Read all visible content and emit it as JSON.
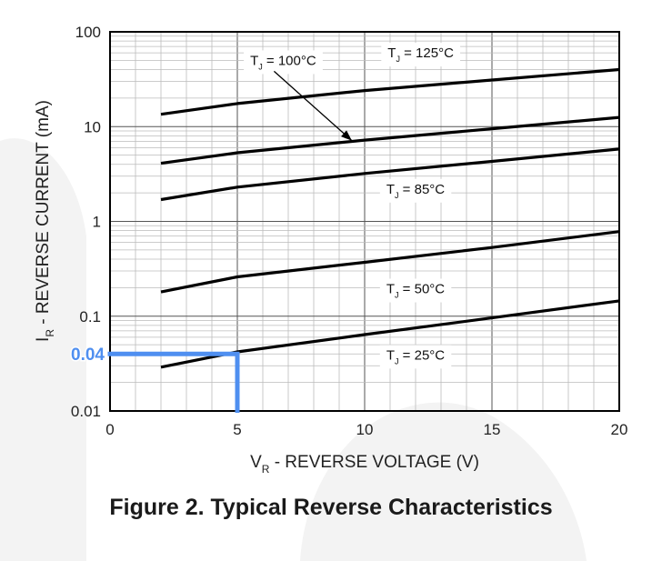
{
  "caption": "Figure 2. Typical Reverse Characteristics",
  "chart_data": {
    "type": "line",
    "title": "Figure 2. Typical Reverse Characteristics",
    "xlabel": {
      "main": "V",
      "sub": "R",
      "rest": " - REVERSE VOLTAGE (V)"
    },
    "ylabel": {
      "main": "I",
      "sub": "R",
      "rest": " - REVERSE CURRENT (mA)"
    },
    "xlim": [
      0,
      20
    ],
    "ylim": [
      0.01,
      100
    ],
    "yscale": "log",
    "xticks": [
      0,
      5,
      10,
      15,
      20
    ],
    "xtick_labels": [
      "0",
      "5",
      "10",
      "15",
      "20"
    ],
    "yticks": [
      0.01,
      0.1,
      1,
      10,
      100
    ],
    "ytick_labels": [
      "0.01",
      "0.1",
      "1",
      "10",
      "100"
    ],
    "grid": true,
    "series": [
      {
        "name": "TJ = 125°C",
        "x": [
          2,
          5,
          10,
          15,
          20
        ],
        "y": [
          13.5,
          17.5,
          24,
          31,
          40
        ]
      },
      {
        "name": "TJ = 100°C",
        "x": [
          2,
          5,
          10,
          15,
          20
        ],
        "y": [
          4.1,
          5.3,
          7.2,
          9.5,
          12.5
        ]
      },
      {
        "name": "TJ = 85°C",
        "x": [
          2,
          5,
          10,
          15,
          20
        ],
        "y": [
          1.7,
          2.3,
          3.2,
          4.3,
          5.8
        ]
      },
      {
        "name": "TJ = 50°C",
        "x": [
          2,
          5,
          10,
          15,
          20
        ],
        "y": [
          0.18,
          0.26,
          0.37,
          0.53,
          0.78
        ]
      },
      {
        "name": "TJ = 25°C",
        "x": [
          2,
          5,
          10,
          15,
          20
        ],
        "y": [
          0.029,
          0.042,
          0.064,
          0.096,
          0.145
        ]
      }
    ],
    "labels": [
      {
        "series": "TJ = 125°C",
        "pre": "T",
        "sub": "J",
        "post": " = 125°C",
        "x": 12.2,
        "y": 60
      },
      {
        "series": "TJ = 100°C",
        "pre": "T",
        "sub": "J",
        "post": " = 100°C",
        "x": 6.8,
        "y": 50,
        "arrow_to": {
          "x": 9.5,
          "y": 7.1
        }
      },
      {
        "series": "TJ = 85°C",
        "pre": "T",
        "sub": "J",
        "post": " = 85°C",
        "x": 12.0,
        "y": 2.2
      },
      {
        "series": "TJ = 50°C",
        "pre": "T",
        "sub": "J",
        "post": " = 50°C",
        "x": 12.0,
        "y": 0.195
      },
      {
        "series": "TJ = 25°C",
        "pre": "T",
        "sub": "J",
        "post": " = 25°C",
        "x": 12.0,
        "y": 0.039
      }
    ],
    "annotation": {
      "text": "0.04",
      "x": 5,
      "y": 0.04,
      "color": "#4f8ff0"
    }
  }
}
